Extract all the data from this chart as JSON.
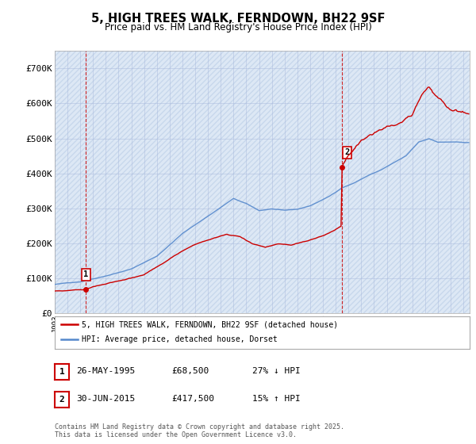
{
  "title_line1": "5, HIGH TREES WALK, FERNDOWN, BH22 9SF",
  "title_line2": "Price paid vs. HM Land Registry's House Price Index (HPI)",
  "ylim": [
    0,
    750000
  ],
  "yticks": [
    0,
    100000,
    200000,
    300000,
    400000,
    500000,
    600000,
    700000
  ],
  "ytick_labels": [
    "£0",
    "£100K",
    "£200K",
    "£300K",
    "£400K",
    "£500K",
    "£600K",
    "£700K"
  ],
  "hpi_color": "#5588cc",
  "price_color": "#cc0000",
  "vline_color": "#cc0000",
  "t1_year": 1995,
  "t1_month": 5,
  "t1_day": 26,
  "t1_price": 68500,
  "t2_year": 2015,
  "t2_month": 6,
  "t2_day": 30,
  "t2_price": 417500,
  "legend_line1": "5, HIGH TREES WALK, FERNDOWN, BH22 9SF (detached house)",
  "legend_line2": "HPI: Average price, detached house, Dorset",
  "annotation1_num": "1",
  "annotation1_date": "26-MAY-1995",
  "annotation1_price": "£68,500",
  "annotation1_hpi": "27% ↓ HPI",
  "annotation2_num": "2",
  "annotation2_date": "30-JUN-2015",
  "annotation2_price": "£417,500",
  "annotation2_hpi": "15% ↑ HPI",
  "footer": "Contains HM Land Registry data © Crown copyright and database right 2025.\nThis data is licensed under the Open Government Licence v3.0.",
  "bg_color": "#dde8f5",
  "hatch_color": "#c8d8ec",
  "grid_color": "#aabbdd",
  "xmin": 1993,
  "xmax": 2025.5
}
